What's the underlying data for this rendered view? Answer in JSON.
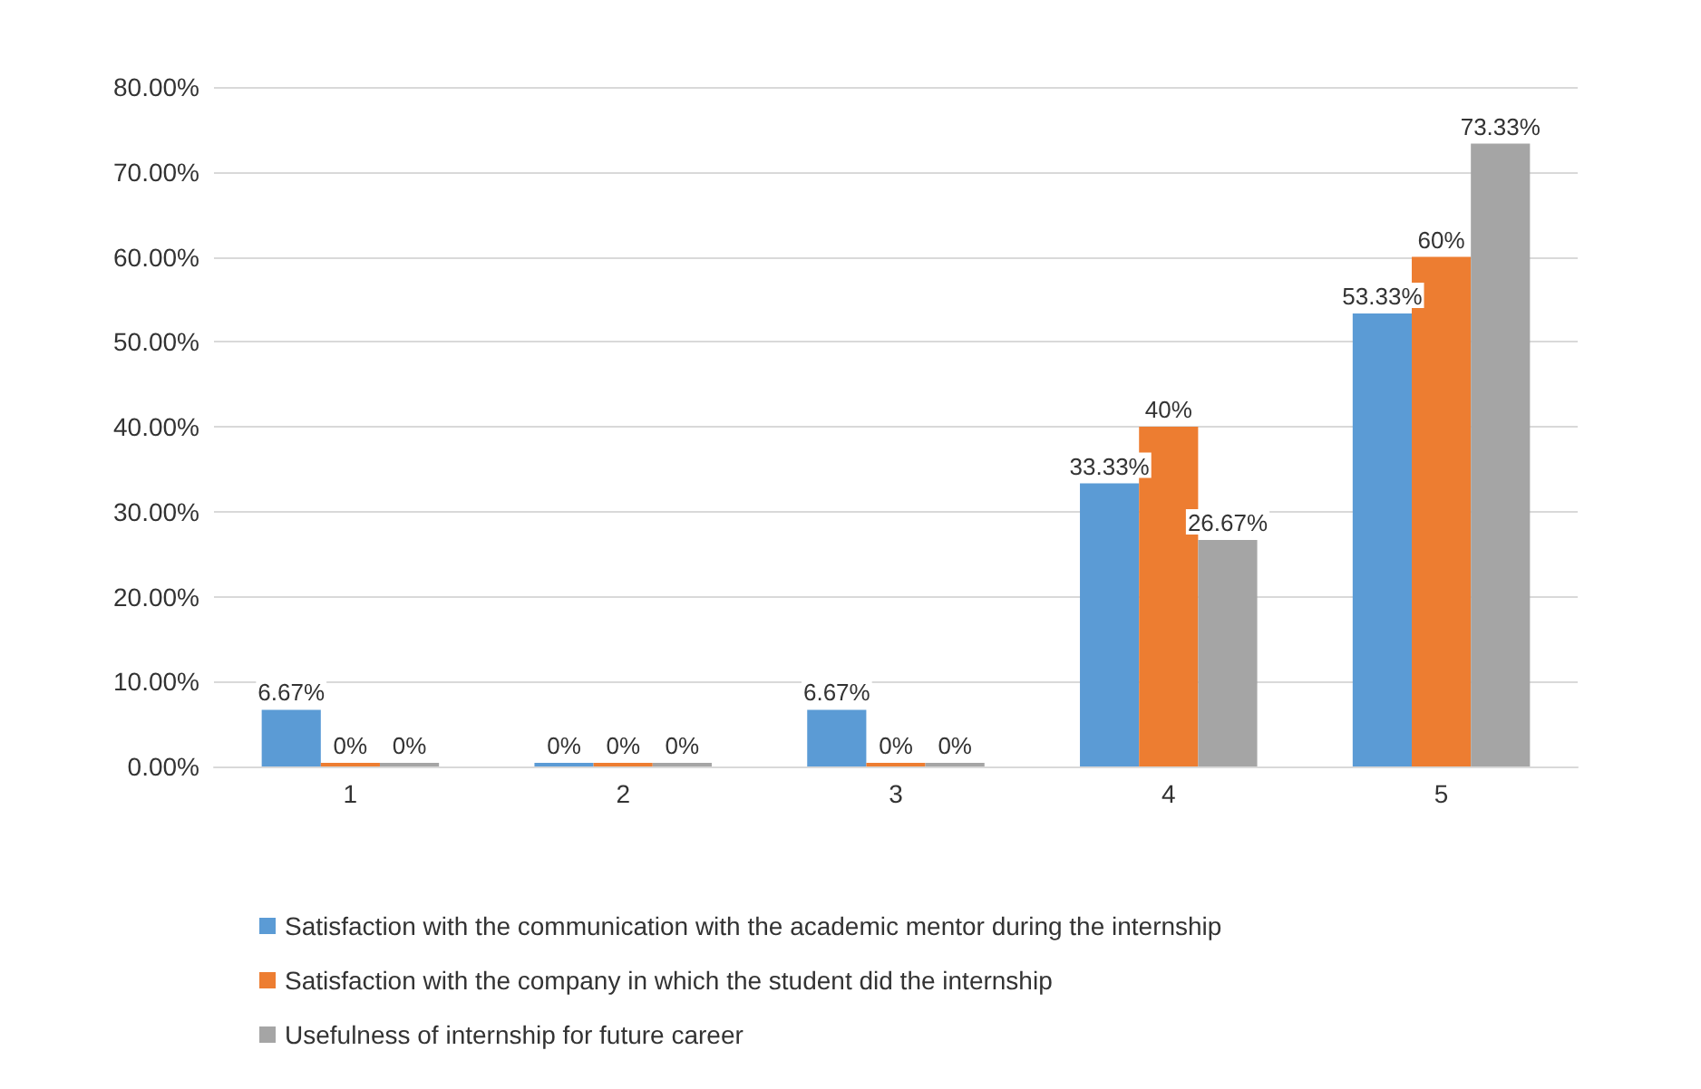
{
  "chart_data": {
    "type": "bar",
    "categories": [
      "1",
      "2",
      "3",
      "4",
      "5"
    ],
    "series": [
      {
        "name": "Satisfaction with the communication with the academic mentor during the internship",
        "color": "#5b9bd5",
        "values": [
          6.67,
          0,
          6.67,
          33.33,
          53.33
        ],
        "value_labels": [
          "6.67%",
          "0%",
          "6.67%",
          "33.33%",
          "53.33%"
        ]
      },
      {
        "name": "Satisfaction with the company in which the student did the internship",
        "color": "#ed7d31",
        "values": [
          0,
          0,
          0,
          40,
          60
        ],
        "value_labels": [
          "0%",
          "0%",
          "0%",
          "40%",
          "60%"
        ]
      },
      {
        "name": "Usefulness of internship for future career",
        "color": "#a5a5a5",
        "values": [
          0,
          0,
          0,
          26.67,
          73.33
        ],
        "value_labels": [
          "0%",
          "0%",
          "0%",
          "26.67%",
          "73.33%"
        ]
      }
    ],
    "ylim": [
      0,
      80
    ],
    "yticks": [
      {
        "value": 0,
        "label": "0.00%"
      },
      {
        "value": 10,
        "label": "10.00%"
      },
      {
        "value": 20,
        "label": "20.00%"
      },
      {
        "value": 30,
        "label": "30.00%"
      },
      {
        "value": 40,
        "label": "40.00%"
      },
      {
        "value": 50,
        "label": "50.00%"
      },
      {
        "value": 60,
        "label": "60.00%"
      },
      {
        "value": 70,
        "label": "70.00%"
      },
      {
        "value": 80,
        "label": "80.00%"
      }
    ],
    "grid": "y",
    "legend": "bottom"
  }
}
